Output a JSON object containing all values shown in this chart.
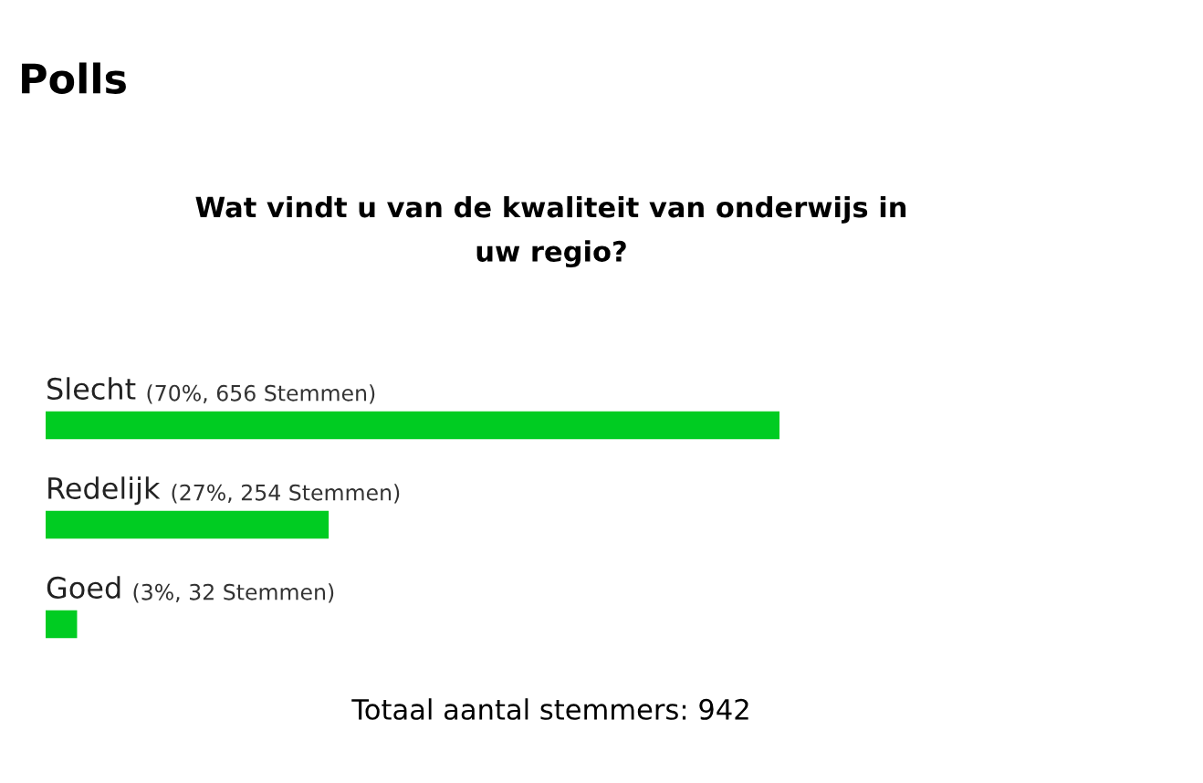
{
  "chart_data": {
    "type": "bar",
    "orientation": "horizontal",
    "title": "Polls",
    "subtitle": "Wat vindt u van de kwaliteit van onderwijs in\nuw regio?",
    "categories": [
      "Slecht",
      "Redelijk",
      "Goed"
    ],
    "values": [
      70,
      27,
      3
    ],
    "value_labels": [
      "(70%, 656 Stemmen)",
      "(27%, 254 Stemmen)",
      "(3%, 32 Stemmen)"
    ],
    "color": "#00cc22",
    "tick_labels": false,
    "grid": false,
    "legend": false,
    "annotations": [
      "Totaal aantal stemmers: 942"
    ]
  }
}
